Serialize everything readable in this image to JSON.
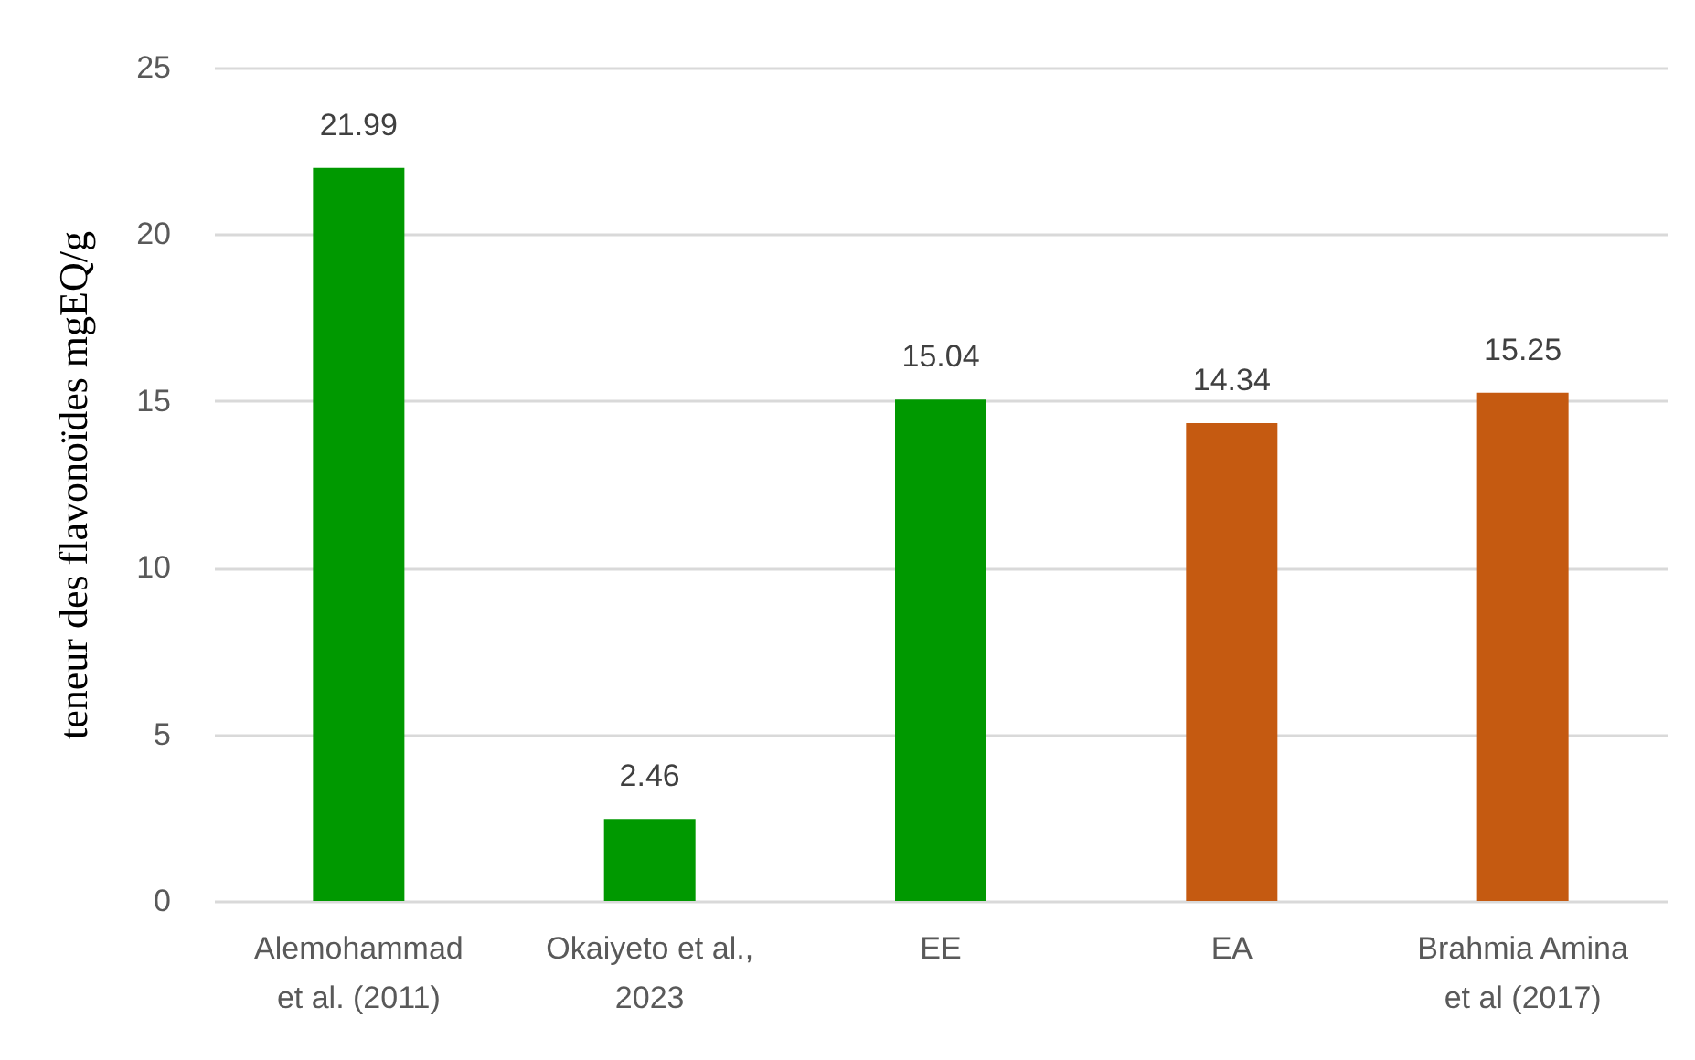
{
  "chart_data": {
    "type": "bar",
    "ylabel": "teneur des flavonoïdes mgEQ/g",
    "categories": [
      "Alemohammad\net al. (2011)",
      "Okaiyeto et al.,\n2023",
      "EE",
      "EA",
      "Brahmia Amina\net al (2017)"
    ],
    "values": [
      21.99,
      2.46,
      15.04,
      14.34,
      15.25
    ],
    "colors": [
      "#009900",
      "#009900",
      "#009900",
      "#c55a11",
      "#c55a11"
    ],
    "ylim": [
      0,
      25
    ],
    "yticks": [
      0,
      5,
      10,
      15,
      20,
      25
    ],
    "grid": "y",
    "data_labels": true
  }
}
